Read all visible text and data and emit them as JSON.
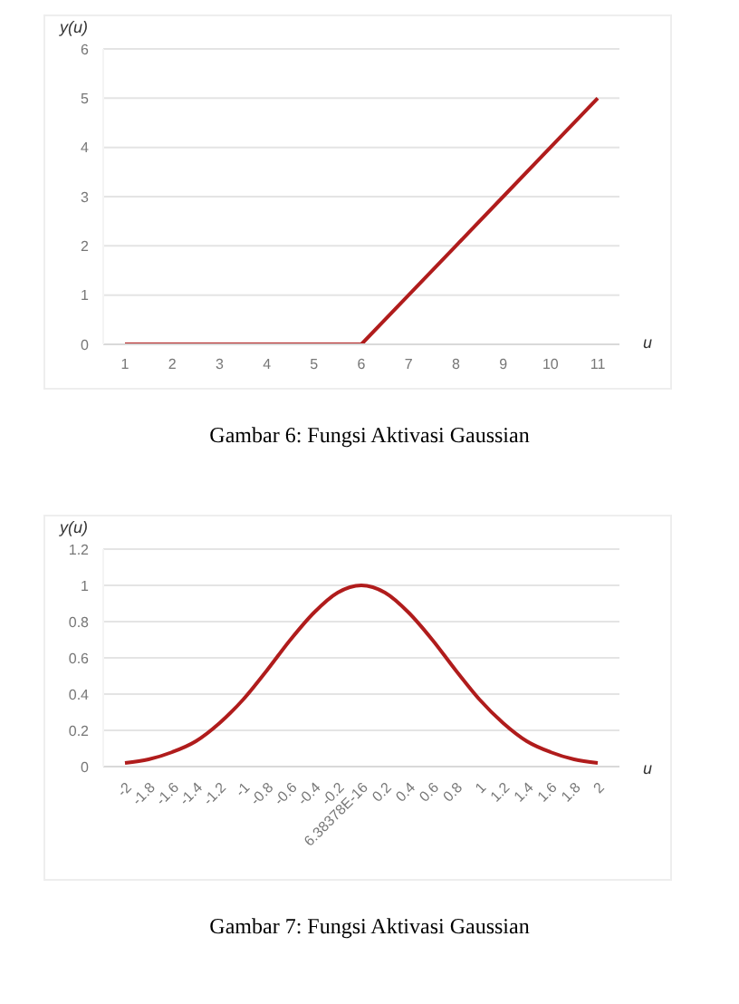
{
  "chart_data": [
    {
      "type": "line",
      "xlabel": "u",
      "ylabel": "y(u)",
      "categories": [
        "1",
        "2",
        "3",
        "4",
        "5",
        "6",
        "7",
        "8",
        "9",
        "10",
        "11"
      ],
      "series": [
        {
          "color": "#b01c1c",
          "values": [
            0,
            0,
            0,
            0,
            0,
            0,
            1,
            2,
            3,
            4,
            5
          ]
        }
      ],
      "ylim": [
        0,
        6
      ],
      "yticks": [
        0,
        1,
        2,
        3,
        4,
        5,
        6
      ],
      "grid": "y",
      "annotations": [
        "Gambar 6: Fungsi Aktivasi Gaussian"
      ]
    },
    {
      "type": "line",
      "xlabel": "u",
      "ylabel": "y(u)",
      "categories": [
        "-2",
        "-1.8",
        "-1.6",
        "-1.4",
        "-1.2",
        "-1",
        "-0.8",
        "-0.6",
        "-0.4",
        "-0.2",
        "6.38378E-16",
        "0.2",
        "0.4",
        "0.6",
        "0.8",
        "1",
        "1.2",
        "1.4",
        "1.6",
        "1.8",
        "2"
      ],
      "series": [
        {
          "color": "#b01c1c",
          "values": [
            0.02,
            0.04,
            0.08,
            0.14,
            0.24,
            0.37,
            0.53,
            0.7,
            0.85,
            0.96,
            1,
            0.96,
            0.85,
            0.7,
            0.53,
            0.37,
            0.24,
            0.14,
            0.08,
            0.04,
            0.02
          ]
        }
      ],
      "ylim": [
        0,
        1.2
      ],
      "yticks": [
        0,
        0.2,
        0.4,
        0.6,
        0.8,
        1,
        1.2
      ],
      "grid": "y",
      "annotations": [
        "Gambar 7: Fungsi Aktivasi Gaussian"
      ]
    }
  ]
}
